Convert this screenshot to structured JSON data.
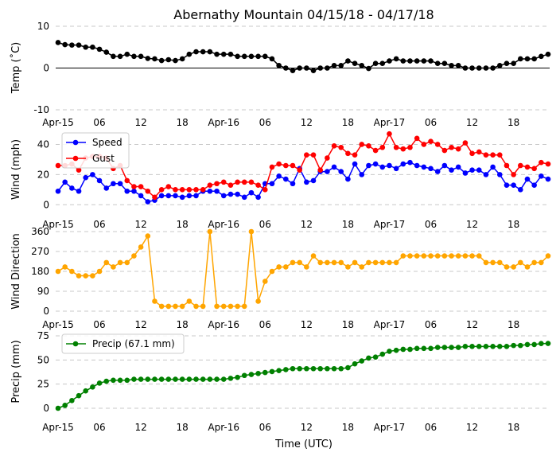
{
  "chart_data": [
    {
      "type": "line",
      "title": "Abernathy Mountain 04/15/18 - 04/17/18",
      "ylabel": "Temp ($^\\circ$C)",
      "ylabel_display": "Temp (˚C)",
      "ylim": [
        -10,
        10
      ],
      "yticks": [
        -10,
        0,
        10
      ],
      "grid": true,
      "x_ticks": [
        "Apr-15",
        "06",
        "12",
        "18",
        "Apr-16",
        "06",
        "12",
        "18",
        "Apr-17",
        "06",
        "12",
        "18"
      ],
      "series": [
        {
          "color": "#000000",
          "values": [
            6.1,
            5.6,
            5.5,
            5.5,
            5.0,
            5.0,
            4.5,
            3.8,
            2.8,
            2.8,
            3.3,
            2.8,
            2.8,
            2.3,
            2.2,
            1.8,
            2.0,
            1.8,
            2.2,
            3.3,
            3.9,
            3.9,
            3.9,
            3.3,
            3.3,
            3.3,
            2.8,
            2.8,
            2.8,
            2.8,
            2.8,
            2.2,
            0.6,
            0,
            -0.6,
            0,
            0,
            -0.6,
            0,
            0,
            0.6,
            0.6,
            1.7,
            1.1,
            0.6,
            -0.1,
            1.1,
            1.1,
            1.7,
            2.2,
            1.7,
            1.7,
            1.7,
            1.7,
            1.7,
            1.1,
            1.1,
            0.6,
            0.6,
            0,
            0,
            0,
            0,
            0,
            0.6,
            1.1,
            1.1,
            2.2,
            2.2,
            2.2,
            2.8,
            3.3
          ]
        }
      ]
    },
    {
      "type": "line",
      "ylabel": "Wind (mph)",
      "ylim": [
        -3,
        55
      ],
      "yticks": [
        0,
        20,
        40
      ],
      "grid": true,
      "legend": "top-left",
      "x_ticks": [
        "Apr-15",
        "06",
        "12",
        "18",
        "Apr-16",
        "06",
        "12",
        "18",
        "Apr-17",
        "06",
        "12",
        "18"
      ],
      "series": [
        {
          "name": "Speed",
          "color": "#0000ff",
          "values": [
            9,
            15,
            11,
            9,
            18,
            20,
            16,
            11,
            14,
            14,
            9,
            9,
            6,
            2,
            3,
            6,
            6,
            6,
            5,
            6,
            6,
            9,
            9,
            9,
            6,
            7,
            7,
            5,
            8,
            5,
            14,
            14,
            19,
            17,
            14,
            24,
            15,
            16,
            22,
            22,
            25,
            22,
            17,
            27,
            20,
            26,
            27,
            25,
            26,
            24,
            27,
            28,
            26,
            25,
            24,
            22,
            26,
            23,
            25,
            21,
            23,
            23,
            20,
            25,
            20,
            13,
            13,
            10,
            17,
            13,
            19,
            17
          ]
        },
        {
          "name": "Gust",
          "color": "#ff0000",
          "values": [
            26,
            26,
            27,
            23,
            31,
            32,
            32,
            31,
            24,
            26,
            16,
            12,
            12,
            9,
            5,
            10,
            12,
            10,
            10,
            10,
            10,
            10,
            13,
            14,
            15,
            13,
            15,
            15,
            15,
            13,
            10,
            25,
            27,
            26,
            26,
            23,
            33,
            33,
            23,
            31,
            39,
            38,
            34,
            33,
            40,
            39,
            36,
            38,
            47,
            38,
            37,
            38,
            44,
            40,
            42,
            40,
            36,
            38,
            37,
            41,
            34,
            35,
            33,
            33,
            33,
            26,
            20,
            26,
            25,
            24,
            28,
            27
          ]
        }
      ]
    },
    {
      "type": "line",
      "ylabel": "Wind Direction",
      "ylim": [
        0,
        360
      ],
      "yticks": [
        0,
        90,
        180,
        270,
        360
      ],
      "grid": true,
      "x_ticks": [
        "Apr-15",
        "06",
        "12",
        "18",
        "Apr-16",
        "06",
        "12",
        "18",
        "Apr-17",
        "06",
        "12",
        "18"
      ],
      "series": [
        {
          "color": "#ffa500",
          "values": [
            180,
            200,
            180,
            160,
            160,
            160,
            180,
            220,
            200,
            220,
            220,
            250,
            290,
            340,
            45,
            22,
            22,
            22,
            22,
            45,
            22,
            22,
            360,
            22,
            22,
            22,
            22,
            22,
            360,
            45,
            135,
            180,
            200,
            200,
            220,
            220,
            200,
            250,
            220,
            220,
            220,
            220,
            200,
            220,
            200,
            220,
            220,
            220,
            220,
            220,
            250,
            250,
            250,
            250,
            250,
            250,
            250,
            250,
            250,
            250,
            250,
            250,
            220,
            220,
            220,
            200,
            200,
            220,
            200,
            220,
            220,
            250
          ]
        }
      ]
    },
    {
      "type": "line",
      "ylabel": "Precip (mm)",
      "xlabel": "Time (UTC)",
      "ylim": [
        0,
        75
      ],
      "yticks": [
        0,
        25,
        50,
        75
      ],
      "grid": true,
      "legend": "top-left",
      "x_ticks": [
        "Apr-15",
        "06",
        "12",
        "18",
        "Apr-16",
        "06",
        "12",
        "18",
        "Apr-17",
        "06",
        "12",
        "18"
      ],
      "series": [
        {
          "name": "Precip (67.1 mm)",
          "color": "#008000",
          "values": [
            0,
            3,
            8,
            13,
            18,
            22,
            26,
            28,
            29,
            29,
            29,
            30,
            30,
            30,
            30,
            30,
            30,
            30,
            30,
            30,
            30,
            30,
            30,
            30,
            30,
            31,
            32,
            34,
            35,
            36,
            37,
            38,
            39,
            40,
            41,
            41,
            41,
            41,
            41,
            41,
            41,
            41,
            42,
            46,
            49,
            52,
            53,
            56,
            59,
            60,
            61,
            61,
            62,
            62,
            62,
            63,
            63,
            63,
            63,
            64,
            64,
            64,
            64,
            64,
            64,
            64,
            65,
            65,
            66,
            66,
            67,
            67.1
          ]
        }
      ]
    }
  ]
}
